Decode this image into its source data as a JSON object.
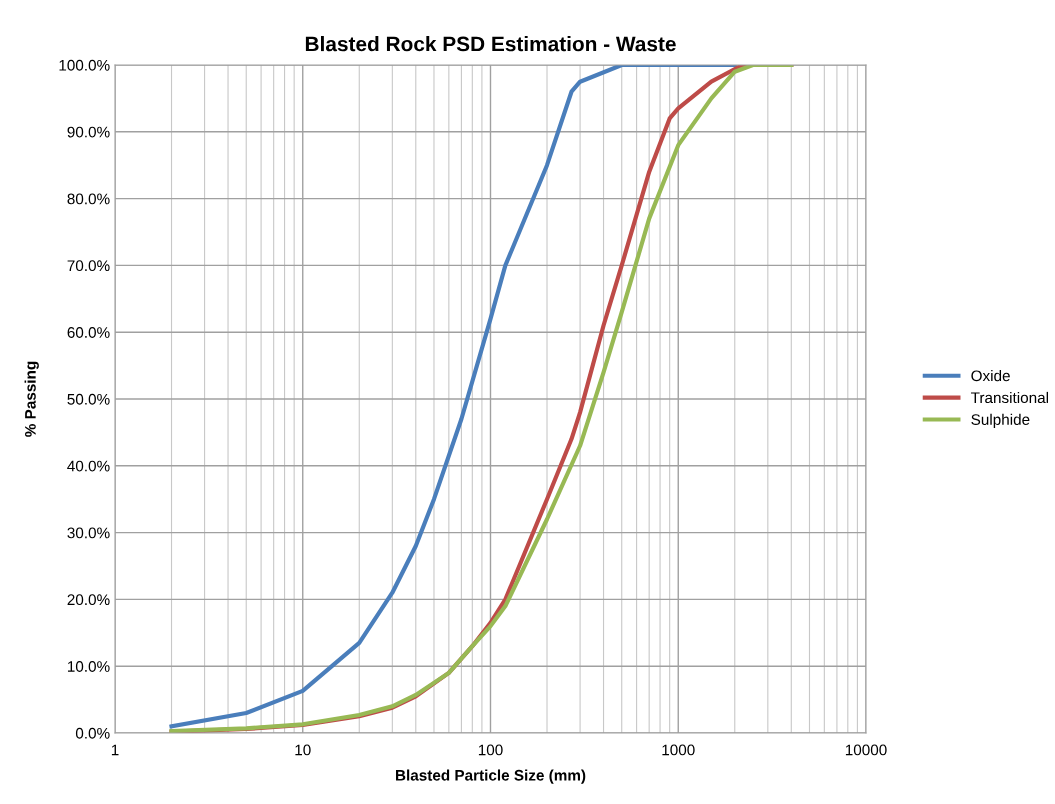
{
  "chart_data": {
    "type": "line",
    "title": "Blasted Rock PSD Estimation - Waste",
    "xlabel": "Blasted Particle Size (mm)",
    "ylabel": "% Passing",
    "log": "x",
    "grid": true,
    "legend": "right",
    "marker": "none",
    "line_style": "solid",
    "xlim": [
      1,
      10000
    ],
    "xticks": [
      1,
      10,
      100,
      1000,
      10000
    ],
    "ylim": [
      0,
      100
    ],
    "yticks": [
      {
        "value": 0,
        "label": "0.0%"
      },
      {
        "value": 10,
        "label": "10.0%"
      },
      {
        "value": 20,
        "label": "20.0%"
      },
      {
        "value": 30,
        "label": "30.0%"
      },
      {
        "value": 40,
        "label": "40.0%"
      },
      {
        "value": 50,
        "label": "50.0%"
      },
      {
        "value": 60,
        "label": "60.0%"
      },
      {
        "value": 70,
        "label": "70.0%"
      },
      {
        "value": 80,
        "label": "80.0%"
      },
      {
        "value": 90,
        "label": "90.0%"
      },
      {
        "value": 100,
        "label": "100.0%"
      }
    ],
    "series": [
      {
        "name": "Oxide",
        "color": "#4a7ebb",
        "x": [
          2,
          5,
          10,
          20,
          30,
          40,
          50,
          70,
          100,
          120,
          200,
          270,
          300,
          500,
          1000,
          2000
        ],
        "values": [
          1,
          3,
          6.3,
          13.5,
          21,
          28,
          35,
          47,
          62,
          70,
          85,
          96,
          97.5,
          100,
          100,
          100
        ]
      },
      {
        "name": "Transitional",
        "color": "#be4b48",
        "x": [
          2,
          5,
          10,
          20,
          30,
          40,
          60,
          80,
          100,
          120,
          200,
          270,
          300,
          400,
          500,
          700,
          900,
          1000,
          1500,
          2200,
          4000
        ],
        "values": [
          0.2,
          0.6,
          1.2,
          2.5,
          3.8,
          5.5,
          9,
          13,
          16.5,
          20,
          35,
          44,
          48,
          61,
          70,
          84,
          92,
          93.5,
          97.5,
          100,
          100
        ]
      },
      {
        "name": "Sulphide",
        "color": "#98b954",
        "x": [
          2,
          5,
          10,
          20,
          30,
          40,
          60,
          80,
          100,
          120,
          200,
          300,
          400,
          500,
          700,
          1000,
          1500,
          2000,
          2500,
          4000
        ],
        "values": [
          0.3,
          0.7,
          1.3,
          2.7,
          4,
          5.7,
          9,
          13,
          16,
          19,
          32,
          43,
          54,
          63,
          77,
          88,
          95,
          99,
          100,
          100
        ]
      }
    ]
  }
}
